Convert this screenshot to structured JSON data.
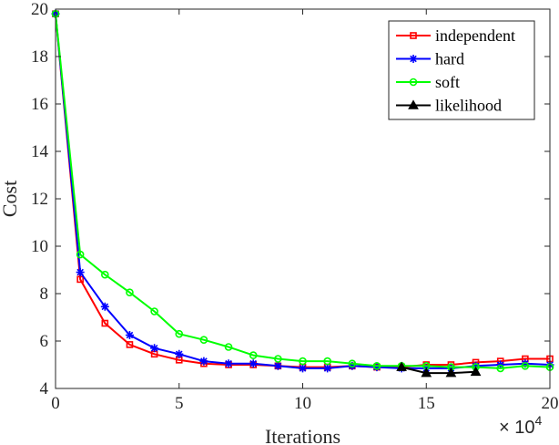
{
  "chart_data": {
    "type": "line",
    "title": "",
    "xlabel": "Iterations",
    "ylabel": "Cost",
    "x_multiplier": {
      "base": "× 10",
      "exponent": "4"
    },
    "xlim": [
      0,
      20
    ],
    "ylim": [
      4,
      20
    ],
    "xticks": [
      0,
      5,
      10,
      15,
      20
    ],
    "yticks": [
      4,
      6,
      8,
      10,
      12,
      14,
      16,
      18,
      20
    ],
    "legend_position": "top-right",
    "series": [
      {
        "name": "independent",
        "color": "#ff0000",
        "marker": "square",
        "x": [
          0,
          1,
          2,
          3,
          4,
          5,
          6,
          7,
          8,
          9,
          10,
          11,
          12,
          13,
          14,
          15,
          16,
          17,
          18,
          19,
          20
        ],
        "y": [
          19.8,
          8.6,
          6.75,
          5.85,
          5.45,
          5.2,
          5.05,
          5.0,
          5.0,
          4.95,
          4.9,
          4.9,
          4.95,
          4.9,
          4.9,
          5.0,
          5.0,
          5.1,
          5.15,
          5.25,
          5.25
        ]
      },
      {
        "name": "hard",
        "color": "#0000ff",
        "marker": "asterisk",
        "x": [
          0,
          1,
          2,
          3,
          4,
          5,
          6,
          7,
          8,
          9,
          10,
          11,
          12,
          13,
          14,
          15,
          16,
          17,
          18,
          19,
          20
        ],
        "y": [
          19.8,
          8.9,
          7.45,
          6.25,
          5.7,
          5.45,
          5.15,
          5.05,
          5.05,
          4.95,
          4.85,
          4.85,
          4.95,
          4.9,
          4.85,
          4.85,
          4.85,
          4.95,
          5.0,
          5.05,
          5.0
        ]
      },
      {
        "name": "soft",
        "color": "#00ff00",
        "marker": "circle",
        "x": [
          0,
          1,
          2,
          3,
          4,
          5,
          6,
          7,
          8,
          9,
          10,
          11,
          12,
          13,
          14,
          15,
          16,
          17,
          18,
          19,
          20
        ],
        "y": [
          19.8,
          9.65,
          8.8,
          8.05,
          7.25,
          6.3,
          6.05,
          5.75,
          5.4,
          5.25,
          5.15,
          5.15,
          5.05,
          4.95,
          4.95,
          4.95,
          4.9,
          4.9,
          4.85,
          4.95,
          4.9
        ]
      },
      {
        "name": "likelihood",
        "color": "#000000",
        "marker": "triangle",
        "x": [
          14,
          15,
          16,
          17
        ],
        "y": [
          4.9,
          4.65,
          4.65,
          4.7
        ]
      }
    ]
  }
}
